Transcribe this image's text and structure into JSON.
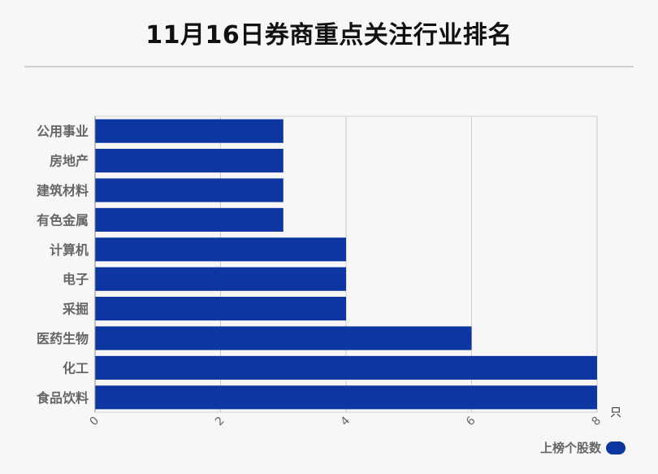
{
  "chart_data": {
    "type": "bar",
    "orientation": "horizontal",
    "title": "11月16日券商重点关注行业排名",
    "categories": [
      "公用事业",
      "房地产",
      "建筑材料",
      "有色金属",
      "计算机",
      "电子",
      "采掘",
      "医药生物",
      "化工",
      "食品饮料"
    ],
    "series": [
      {
        "name": "上榜个股数",
        "values": [
          3,
          3,
          3,
          3,
          4,
          4,
          4,
          6,
          8,
          8
        ],
        "color": "#0d36a0"
      }
    ],
    "xlim": [
      0,
      8
    ],
    "xticks": [
      "0",
      "2",
      "4",
      "6",
      "8"
    ],
    "xunit": "只",
    "grid": true,
    "legend_position": "bottom-right"
  }
}
